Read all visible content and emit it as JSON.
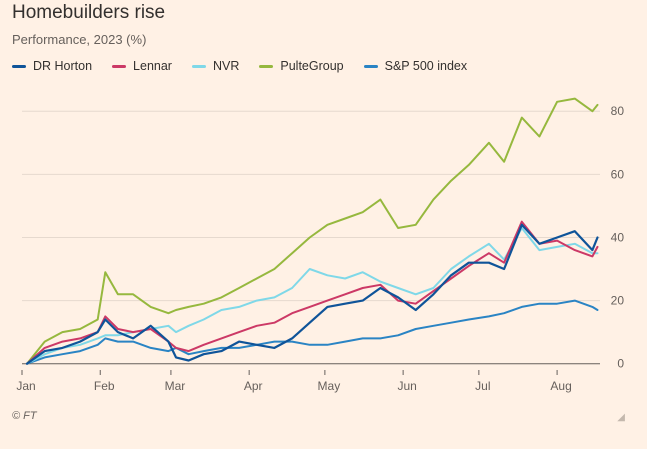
{
  "header": {
    "title": "Homebuilders rise",
    "subtitle": "Performance, 2023 (%)"
  },
  "footer": {
    "source": "© FT"
  },
  "colors": {
    "background": "#fff1e5",
    "grid": "#e6d9ce",
    "baseline": "#66605c",
    "text": "#66605c"
  },
  "chart_data": {
    "type": "line",
    "x_axis": {
      "ticks": [
        "Jan",
        "Feb",
        "Mar",
        "Apr",
        "May",
        "Jun",
        "Jul",
        "Aug"
      ],
      "range": [
        "2023-01-01",
        "2023-08-18"
      ]
    },
    "y_axis": {
      "ticks": [
        0,
        20,
        40,
        60,
        80
      ],
      "range": [
        -2,
        88
      ],
      "position": "right"
    },
    "grid": true,
    "legend_position": "top-left",
    "series": [
      {
        "name": "DR Horton",
        "color": "#0f5499",
        "x": [
          "2023-01-03",
          "2023-01-10",
          "2023-01-17",
          "2023-01-24",
          "2023-01-31",
          "2023-02-03",
          "2023-02-08",
          "2023-02-14",
          "2023-02-21",
          "2023-02-28",
          "2023-03-03",
          "2023-03-08",
          "2023-03-14",
          "2023-03-21",
          "2023-03-28",
          "2023-04-04",
          "2023-04-11",
          "2023-04-18",
          "2023-04-25",
          "2023-05-02",
          "2023-05-09",
          "2023-05-16",
          "2023-05-23",
          "2023-05-30",
          "2023-06-06",
          "2023-06-13",
          "2023-06-20",
          "2023-06-27",
          "2023-07-05",
          "2023-07-11",
          "2023-07-18",
          "2023-07-25",
          "2023-08-01",
          "2023-08-08",
          "2023-08-15",
          "2023-08-17"
        ],
        "values": [
          0,
          4,
          5,
          7,
          10,
          14,
          10,
          8,
          12,
          7,
          2,
          1,
          3,
          4,
          7,
          6,
          5,
          8,
          13,
          18,
          19,
          20,
          24,
          21,
          17,
          22,
          28,
          32,
          32,
          30,
          44,
          38,
          40,
          42,
          36,
          40
        ]
      },
      {
        "name": "Lennar",
        "color": "#cc3966",
        "x": [
          "2023-01-03",
          "2023-01-10",
          "2023-01-17",
          "2023-01-24",
          "2023-01-31",
          "2023-02-03",
          "2023-02-08",
          "2023-02-14",
          "2023-02-21",
          "2023-02-28",
          "2023-03-03",
          "2023-03-08",
          "2023-03-14",
          "2023-03-21",
          "2023-03-28",
          "2023-04-04",
          "2023-04-11",
          "2023-04-18",
          "2023-04-25",
          "2023-05-02",
          "2023-05-09",
          "2023-05-16",
          "2023-05-23",
          "2023-05-30",
          "2023-06-06",
          "2023-06-13",
          "2023-06-20",
          "2023-06-27",
          "2023-07-05",
          "2023-07-11",
          "2023-07-18",
          "2023-07-25",
          "2023-08-01",
          "2023-08-08",
          "2023-08-15",
          "2023-08-17"
        ],
        "values": [
          0,
          5,
          7,
          8,
          10,
          15,
          11,
          10,
          11,
          7,
          5,
          4,
          6,
          8,
          10,
          12,
          13,
          16,
          18,
          20,
          22,
          24,
          25,
          20,
          19,
          23,
          27,
          31,
          35,
          32,
          45,
          38,
          39,
          36,
          34,
          37
        ]
      },
      {
        "name": "NVR",
        "color": "#7fd8e8",
        "x": [
          "2023-01-03",
          "2023-01-10",
          "2023-01-17",
          "2023-01-24",
          "2023-01-31",
          "2023-02-03",
          "2023-02-08",
          "2023-02-14",
          "2023-02-21",
          "2023-02-28",
          "2023-03-03",
          "2023-03-08",
          "2023-03-14",
          "2023-03-21",
          "2023-03-28",
          "2023-04-04",
          "2023-04-11",
          "2023-04-18",
          "2023-04-25",
          "2023-05-02",
          "2023-05-09",
          "2023-05-16",
          "2023-05-23",
          "2023-05-30",
          "2023-06-06",
          "2023-06-13",
          "2023-06-20",
          "2023-06-27",
          "2023-07-05",
          "2023-07-11",
          "2023-07-18",
          "2023-07-25",
          "2023-08-01",
          "2023-08-08",
          "2023-08-15",
          "2023-08-17"
        ],
        "values": [
          0,
          3,
          5,
          6,
          8,
          9,
          9,
          10,
          11,
          12,
          10,
          12,
          14,
          17,
          18,
          20,
          21,
          24,
          30,
          28,
          27,
          29,
          26,
          24,
          22,
          24,
          30,
          34,
          38,
          33,
          43,
          36,
          37,
          38,
          35,
          35
        ]
      },
      {
        "name": "PulteGroup",
        "color": "#96b83e",
        "x": [
          "2023-01-03",
          "2023-01-10",
          "2023-01-17",
          "2023-01-24",
          "2023-01-31",
          "2023-02-03",
          "2023-02-08",
          "2023-02-14",
          "2023-02-21",
          "2023-02-28",
          "2023-03-03",
          "2023-03-08",
          "2023-03-14",
          "2023-03-21",
          "2023-03-28",
          "2023-04-04",
          "2023-04-11",
          "2023-04-18",
          "2023-04-25",
          "2023-05-02",
          "2023-05-09",
          "2023-05-16",
          "2023-05-23",
          "2023-05-30",
          "2023-06-06",
          "2023-06-13",
          "2023-06-20",
          "2023-06-27",
          "2023-07-05",
          "2023-07-11",
          "2023-07-18",
          "2023-07-25",
          "2023-08-01",
          "2023-08-08",
          "2023-08-15",
          "2023-08-17"
        ],
        "values": [
          0,
          7,
          10,
          11,
          14,
          29,
          22,
          22,
          18,
          16,
          17,
          18,
          19,
          21,
          24,
          27,
          30,
          35,
          40,
          44,
          46,
          48,
          52,
          43,
          44,
          52,
          58,
          63,
          70,
          64,
          78,
          72,
          83,
          84,
          80,
          82
        ]
      },
      {
        "name": "S&P 500 index",
        "color": "#2a84c4",
        "x": [
          "2023-01-03",
          "2023-01-10",
          "2023-01-17",
          "2023-01-24",
          "2023-01-31",
          "2023-02-03",
          "2023-02-08",
          "2023-02-14",
          "2023-02-21",
          "2023-02-28",
          "2023-03-03",
          "2023-03-08",
          "2023-03-14",
          "2023-03-21",
          "2023-03-28",
          "2023-04-04",
          "2023-04-11",
          "2023-04-18",
          "2023-04-25",
          "2023-05-02",
          "2023-05-09",
          "2023-05-16",
          "2023-05-23",
          "2023-05-30",
          "2023-06-06",
          "2023-06-13",
          "2023-06-20",
          "2023-06-27",
          "2023-07-05",
          "2023-07-11",
          "2023-07-18",
          "2023-07-25",
          "2023-08-01",
          "2023-08-08",
          "2023-08-15",
          "2023-08-17"
        ],
        "values": [
          0,
          2,
          3,
          4,
          6,
          8,
          7,
          7,
          5,
          4,
          5,
          3,
          4,
          5,
          5,
          6,
          7,
          7,
          6,
          6,
          7,
          8,
          8,
          9,
          11,
          12,
          13,
          14,
          15,
          16,
          18,
          19,
          19,
          20,
          18,
          17
        ]
      }
    ]
  }
}
